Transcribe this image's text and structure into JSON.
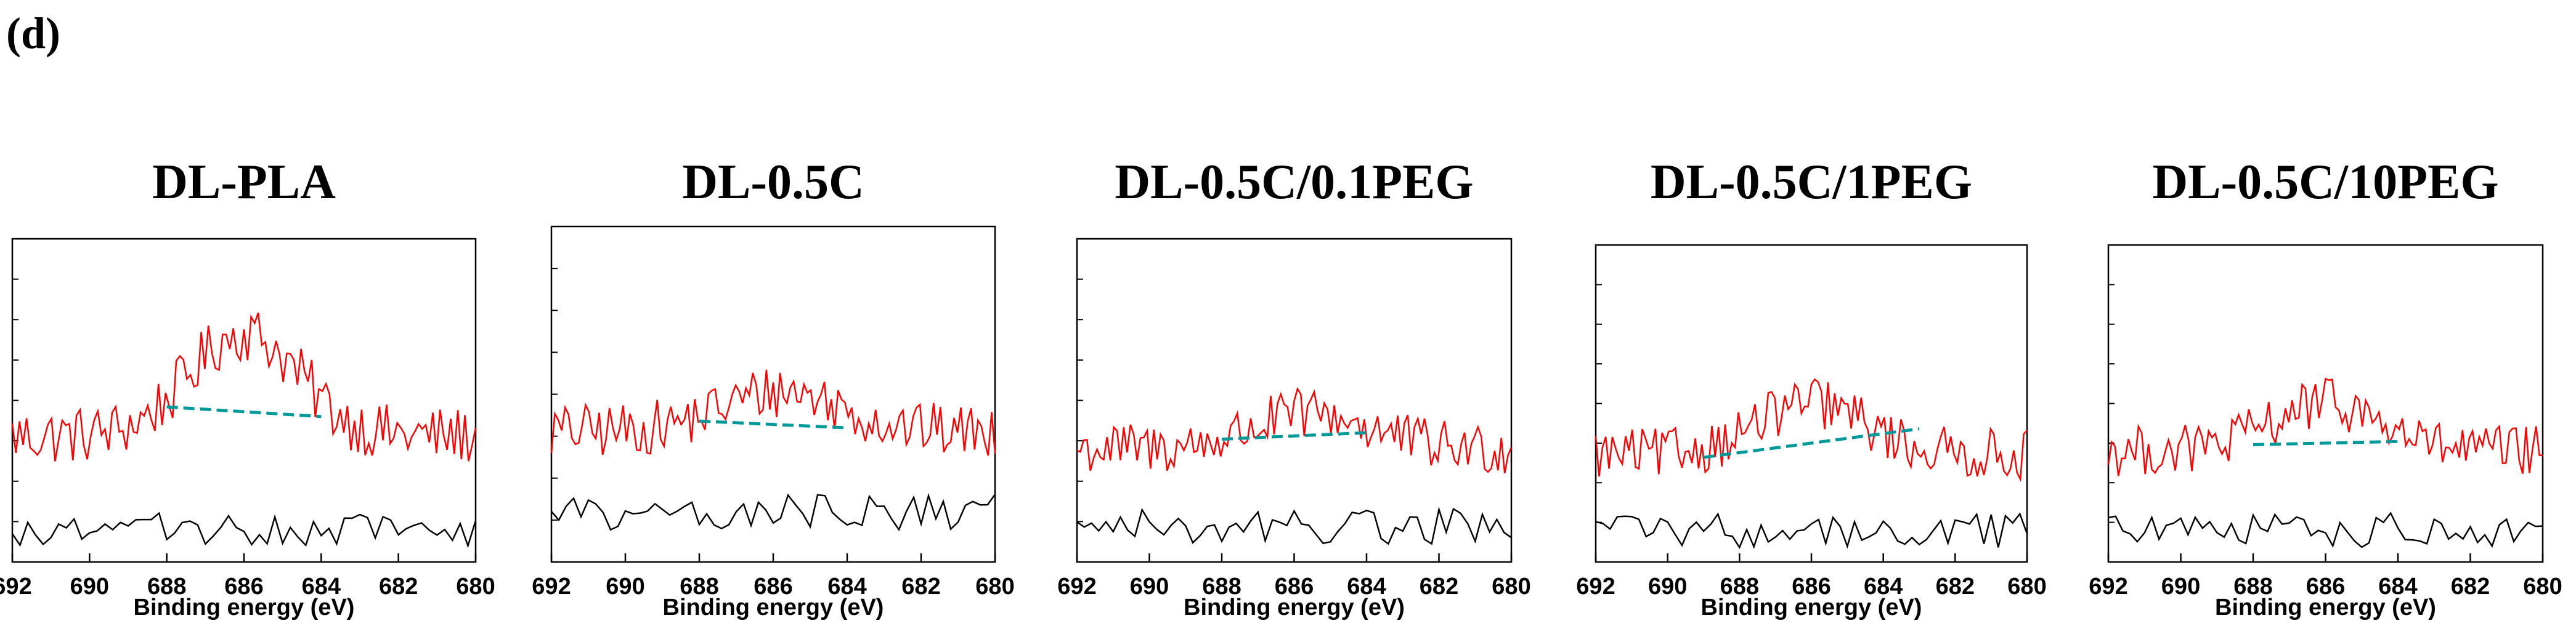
{
  "panel_label": "(d)",
  "colors": {
    "measured": "#ff0000",
    "baseline": "#009999",
    "reference": "#000000",
    "frame": "#000000"
  },
  "chart_data": [
    {
      "type": "line",
      "title": "DL-PLA",
      "xlabel": "Binding energy (eV)",
      "ylabel": "",
      "xlim": [
        692,
        680
      ],
      "x_reversed": true,
      "ylim": [
        0,
        10
      ],
      "x_ticks": [
        "692",
        "690",
        "688",
        "686",
        "684",
        "682",
        "680"
      ],
      "peak": {
        "center": 686,
        "height": 3.2,
        "width": 1.4
      },
      "signal_level": 3.9,
      "noise_amplitude": 0.9,
      "reference_level": 1.0,
      "baseline_fit": {
        "x": [
          688,
          684
        ],
        "y": [
          4.8,
          4.5
        ]
      }
    },
    {
      "type": "line",
      "title": "DL-0.5C",
      "xlabel": "Binding energy (eV)",
      "ylabel": "",
      "xlim": [
        692,
        680
      ],
      "x_reversed": true,
      "ylim": [
        0,
        10
      ],
      "x_ticks": [
        "692",
        "690",
        "688",
        "686",
        "684",
        "682",
        "680"
      ],
      "peak": {
        "center": 685.8,
        "height": 1.2,
        "width": 1.6
      },
      "signal_level": 3.9,
      "noise_amplitude": 0.8,
      "reference_level": 1.5,
      "baseline_fit": {
        "x": [
          688,
          684
        ],
        "y": [
          4.2,
          4.0
        ]
      }
    },
    {
      "type": "line",
      "title": "DL-0.5C/0.1PEG",
      "xlabel": "Binding energy (eV)",
      "ylabel": "",
      "xlim": [
        692,
        680
      ],
      "x_reversed": true,
      "ylim": [
        0,
        10
      ],
      "x_ticks": [
        "692",
        "690",
        "688",
        "686",
        "684",
        "682",
        "680"
      ],
      "peak": {
        "center": 685.5,
        "height": 1.1,
        "width": 1.6
      },
      "signal_level": 3.5,
      "noise_amplitude": 0.8,
      "reference_level": 1.1,
      "baseline_fit": {
        "x": [
          688,
          684
        ],
        "y": [
          3.8,
          4.0
        ]
      }
    },
    {
      "type": "line",
      "title": "DL-0.5C/1PEG",
      "xlabel": "Binding energy (eV)",
      "ylabel": "",
      "xlim": [
        692,
        680
      ],
      "x_reversed": true,
      "ylim": [
        0,
        10
      ],
      "x_ticks": [
        "692",
        "690",
        "688",
        "686",
        "684",
        "682",
        "680"
      ],
      "peak": {
        "center": 686,
        "height": 1.6,
        "width": 1.5
      },
      "signal_level": 3.4,
      "noise_amplitude": 0.8,
      "reference_level": 1.0,
      "baseline_fit": {
        "x": [
          689,
          683
        ],
        "y": [
          3.3,
          4.2
        ]
      }
    },
    {
      "type": "line",
      "title": "DL-0.5C/10PEG",
      "xlabel": "Binding energy (eV)",
      "ylabel": "",
      "xlim": [
        692,
        680
      ],
      "x_reversed": true,
      "ylim": [
        0,
        10
      ],
      "x_ticks": [
        "692",
        "690",
        "688",
        "686",
        "684",
        "682",
        "680"
      ],
      "peak": {
        "center": 686,
        "height": 1.5,
        "width": 1.5
      },
      "signal_level": 3.5,
      "noise_amplitude": 0.8,
      "reference_level": 1.0,
      "baseline_fit": {
        "x": [
          688,
          684
        ],
        "y": [
          3.7,
          3.8
        ]
      }
    }
  ]
}
